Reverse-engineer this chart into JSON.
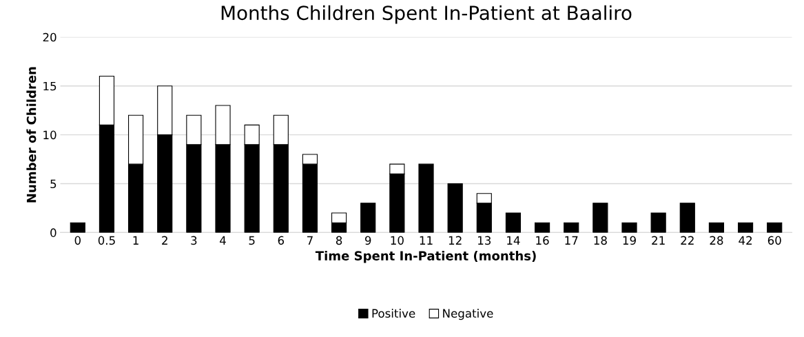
{
  "chart_data": {
    "type": "bar",
    "title": "Months Children Spent In-Patient at Baaliro",
    "xlabel": "Time Spent In-Patient (months)",
    "ylabel": "Number of Children",
    "categories": [
      "0",
      "0.5",
      "1",
      "2",
      "3",
      "4",
      "5",
      "6",
      "7",
      "8",
      "9",
      "10",
      "11",
      "12",
      "13",
      "14",
      "16",
      "17",
      "18",
      "19",
      "21",
      "22",
      "28",
      "42",
      "60"
    ],
    "series": [
      {
        "name": "Positive",
        "color": "#000000",
        "values": [
          1,
          11,
          7,
          10,
          9,
          9,
          9,
          9,
          7,
          1,
          3,
          6,
          7,
          5,
          3,
          2,
          1,
          1,
          3,
          1,
          2,
          3,
          1,
          1,
          1
        ]
      },
      {
        "name": "Negative",
        "color": "#ffffff",
        "values": [
          null,
          5,
          5,
          5,
          3,
          4,
          2,
          3,
          1,
          1,
          null,
          1,
          null,
          null,
          1,
          null,
          null,
          null,
          null,
          null,
          null,
          null,
          null,
          null,
          null
        ]
      }
    ],
    "stacked": true,
    "ylim": [
      0,
      20
    ],
    "yticks": [
      0,
      5,
      10,
      15,
      20
    ],
    "grid": "y",
    "legend": "bottom"
  }
}
